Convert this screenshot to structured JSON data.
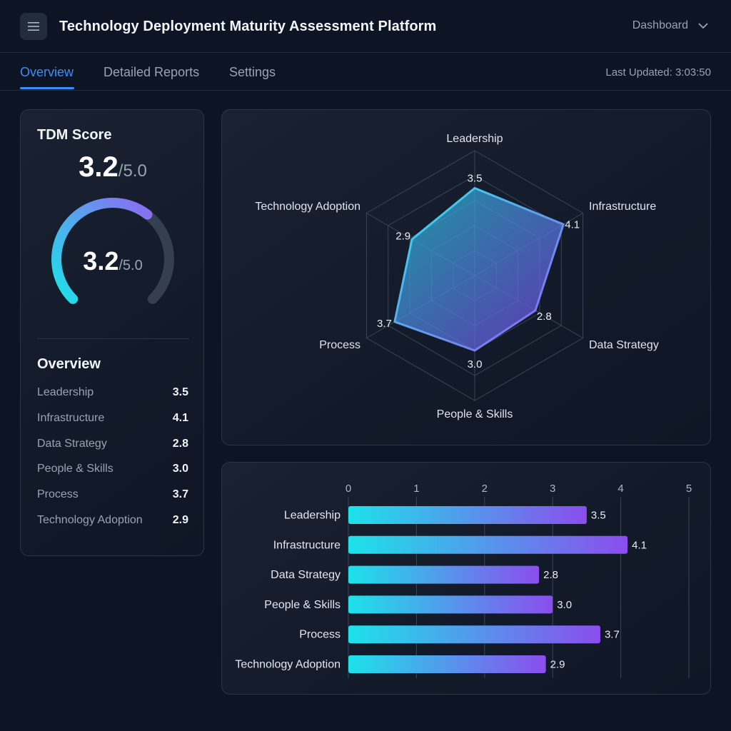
{
  "header": {
    "app_title": "Technology Deployment Maturity Assessment Platform",
    "view_selector": "Dashboard",
    "menu_icon": "hamburger-menu-icon",
    "chevron_icon": "chevron-down-icon"
  },
  "tabs": [
    {
      "label": "Overview",
      "active": true
    },
    {
      "label": "Detailed Reports",
      "active": false
    },
    {
      "label": "Settings",
      "active": false
    }
  ],
  "last_updated": "Last Updated: 3:03:50",
  "score_card": {
    "title": "TDM Score",
    "score": "3.2",
    "max": "/5.0",
    "gauge_score": "3.2",
    "gauge_max": "/5.0",
    "gauge_fraction": 0.64,
    "overview_title": "Overview",
    "items": [
      {
        "name": "Leadership",
        "score": "3.5"
      },
      {
        "name": "Infrastructure",
        "score": "4.1"
      },
      {
        "name": "Data Strategy",
        "score": "2.8"
      },
      {
        "name": "People & Skills",
        "score": "3.0"
      },
      {
        "name": "Process",
        "score": "3.7"
      },
      {
        "name": "Technology Adoption",
        "score": "2.9"
      }
    ]
  },
  "colors": {
    "accent": "#3b8ef5",
    "gradient_start": "#1de2ea",
    "gradient_end": "#8b4ded",
    "background": "#0d1424"
  },
  "chart_data": [
    {
      "type": "radar",
      "axes": [
        "Leadership",
        "Infrastructure",
        "Data Strategy",
        "People & Skills",
        "Process",
        "Technology Adoption"
      ],
      "values": [
        3.5,
        4.1,
        2.8,
        3.0,
        3.7,
        2.9
      ],
      "value_labels": [
        "3.5",
        "4.1",
        "2.8",
        "3.0",
        "3.7",
        "2.9"
      ],
      "range": [
        0,
        5
      ]
    },
    {
      "type": "bar",
      "orientation": "horizontal",
      "categories": [
        "Leadership",
        "Infrastructure",
        "Data Strategy",
        "People & Skills",
        "Process",
        "Technology Adoption"
      ],
      "values": [
        3.5,
        4.1,
        2.8,
        3.0,
        3.7,
        2.9
      ],
      "value_labels": [
        "3.5",
        "4.1",
        "2.8",
        "3.0",
        "3.7",
        "2.9"
      ],
      "xlim": [
        0,
        5
      ],
      "ticks": [
        "0",
        "1",
        "2",
        "3",
        "4",
        "5"
      ],
      "grid": true
    }
  ]
}
